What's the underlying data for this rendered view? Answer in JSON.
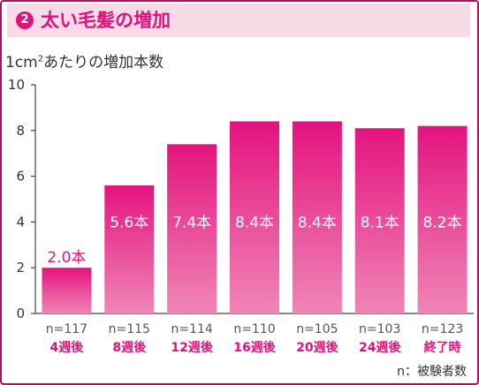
{
  "header": {
    "badge": "2",
    "title": "太い毛髪の増加"
  },
  "axis_label": {
    "prefix": "1cm",
    "sup": "2",
    "suffix": "あたりの増加本数"
  },
  "note": "n：被験者数",
  "colors": {
    "accent": "#e0127d",
    "bar_top": "#e4137f",
    "bar_bottom": "#ef86b6",
    "title_bg": "#f9dbe8",
    "frame": "#a3165c"
  },
  "chart_data": {
    "type": "bar",
    "ylabel": "1cm2あたりの増加本数",
    "ylim": [
      0,
      10
    ],
    "yticks": [
      0,
      2,
      4,
      6,
      8,
      10
    ],
    "categories": [
      "4週後",
      "8週後",
      "12週後",
      "16週後",
      "20週後",
      "24週後",
      "終了時"
    ],
    "sample_sizes": [
      "n=117",
      "n=115",
      "n=114",
      "n=110",
      "n=105",
      "n=103",
      "n=123"
    ],
    "values": [
      2.0,
      5.6,
      7.4,
      8.4,
      8.4,
      8.1,
      8.2
    ],
    "value_labels": [
      "2.0本",
      "5.6本",
      "7.4本",
      "8.4本",
      "8.4本",
      "8.1本",
      "8.2本"
    ],
    "grid": false,
    "legend": "none"
  }
}
